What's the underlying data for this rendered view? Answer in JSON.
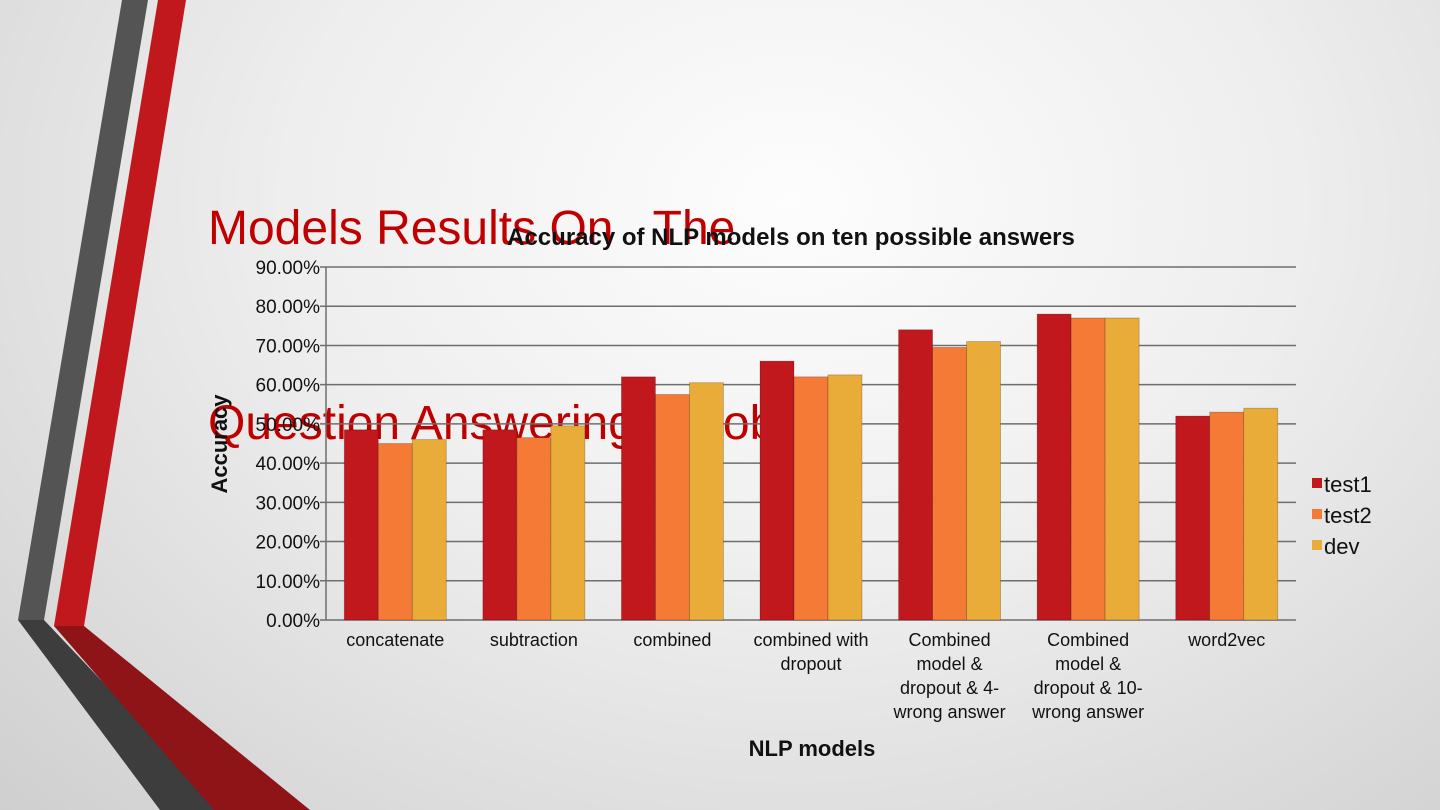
{
  "slide": {
    "title_line1": "Models Results On   The",
    "title_line2": "Question Answering   Problem"
  },
  "colors": {
    "title": "#c00000",
    "accent_red": "#c0181d",
    "accent_dark": "#4d4d4d",
    "test1": "#c0181d",
    "test2": "#f47a36",
    "dev": "#eaac38"
  },
  "chart_data": {
    "type": "bar",
    "title": "Accuracy of NLP models on ten possible answers",
    "xlabel": "NLP models",
    "ylabel": "Accuracy",
    "ylim": [
      0,
      90
    ],
    "yticks": [
      "0.00%",
      "10.00%",
      "20.00%",
      "30.00%",
      "40.00%",
      "50.00%",
      "60.00%",
      "70.00%",
      "80.00%",
      "90.00%"
    ],
    "grid": true,
    "legend_position": "right",
    "categories": [
      "concatenate",
      "subtraction",
      "combined",
      "combined with dropout",
      "Combined model & dropout & 4-wrong answer",
      "Combined model & dropout & 10-wrong answer",
      "word2vec"
    ],
    "category_label_lines": [
      [
        "concatenate"
      ],
      [
        "subtraction"
      ],
      [
        "combined"
      ],
      [
        "combined with",
        "dropout"
      ],
      [
        "Combined",
        "model &",
        "dropout & 4-",
        "wrong answer"
      ],
      [
        "Combined",
        "model &",
        "dropout & 10-",
        "wrong answer"
      ],
      [
        "word2vec"
      ]
    ],
    "series": [
      {
        "name": "test1",
        "color": "#c0181d",
        "values": [
          48.5,
          48.5,
          62.0,
          66.0,
          74.0,
          78.0,
          52.0
        ]
      },
      {
        "name": "test2",
        "color": "#f47a36",
        "values": [
          45.0,
          46.5,
          57.5,
          62.0,
          69.5,
          77.0,
          53.0
        ]
      },
      {
        "name": "dev",
        "color": "#eaac38",
        "values": [
          46.0,
          49.5,
          60.5,
          62.5,
          71.0,
          77.0,
          54.0
        ]
      }
    ]
  }
}
